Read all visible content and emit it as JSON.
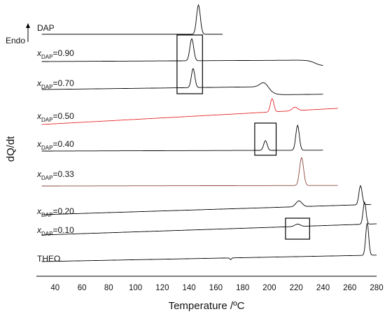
{
  "chart_data": {
    "type": "line",
    "xlabel": "Temperature /ºC",
    "ylabel": "dQ/dt",
    "endo_label": "Endo",
    "xlim": [
      26,
      280
    ],
    "xticks": [
      40,
      60,
      80,
      100,
      120,
      140,
      160,
      180,
      200,
      220,
      240,
      260,
      280
    ],
    "grid": false,
    "legend": "none",
    "series": [
      {
        "name": "DAP",
        "label_main": "DAP",
        "label_sub": "",
        "color": "#000000",
        "x_range": [
          30,
          165
        ],
        "baseline": 0.0,
        "slope": 0.0,
        "peaks": [
          {
            "x": 147,
            "height": 1.0,
            "width": 1.4
          }
        ],
        "steps": []
      },
      {
        "name": "x_DAP=0.90",
        "label_main": "x",
        "label_sub": "DAP",
        "label_value": "=0.90",
        "color": "#000000",
        "x_range": [
          30,
          240
        ],
        "baseline": 0.0,
        "slope": 0.05,
        "peaks": [
          {
            "x": 142,
            "height": 0.75,
            "width": 1.4
          }
        ],
        "steps": [
          {
            "x": 234,
            "height": -0.2
          }
        ]
      },
      {
        "name": "x_DAP=0.70",
        "label_main": "x",
        "label_sub": "DAP",
        "label_value": "=0.70",
        "color": "#000000",
        "x_range": [
          30,
          240
        ],
        "baseline": 0.0,
        "slope": 0.12,
        "peaks": [
          {
            "x": 143,
            "height": 0.65,
            "width": 1.3
          },
          {
            "x": 196,
            "height": 0.18,
            "width": 3.0
          }
        ],
        "steps": [
          {
            "x": 200,
            "height": -0.28
          }
        ]
      },
      {
        "name": "x_DAP=0.50",
        "label_main": "x",
        "label_sub": "DAP",
        "label_value": "=0.50",
        "color": "#e8292a",
        "x_range": [
          30,
          251
        ],
        "baseline": 0.0,
        "slope": 0.55,
        "peaks": [
          {
            "x": 202,
            "height": 0.45,
            "width": 1.3
          },
          {
            "x": 219,
            "height": 0.12,
            "width": 2.0
          }
        ],
        "steps": []
      },
      {
        "name": "x_DAP=0.40",
        "label_main": "x",
        "label_sub": "DAP",
        "label_value": "=0.40",
        "color": "#000000",
        "x_range": [
          30,
          240
        ],
        "baseline": 0.0,
        "slope": 0.03,
        "peaks": [
          {
            "x": 197,
            "height": 0.33,
            "width": 1.3
          },
          {
            "x": 221,
            "height": 0.85,
            "width": 1.3
          }
        ],
        "steps": []
      },
      {
        "name": "x_DAP=0.33",
        "label_main": "x",
        "label_sub": "DAP",
        "label_value": "=0.33",
        "color": "#8b4a3c",
        "x_range": [
          30,
          251
        ],
        "baseline": 0.0,
        "slope": 0.02,
        "peaks": [
          {
            "x": 224,
            "height": 0.95,
            "width": 1.5
          }
        ],
        "steps": []
      },
      {
        "name": "x_DAP=0.20",
        "label_main": "x",
        "label_sub": "DAP",
        "label_value": "=0.20",
        "color": "#000000",
        "x_range": [
          30,
          276
        ],
        "baseline": 0.0,
        "slope": 0.35,
        "peaks": [
          {
            "x": 222,
            "height": 0.2,
            "width": 2.2
          },
          {
            "x": 268,
            "height": 0.65,
            "width": 1.2
          }
        ],
        "steps": []
      },
      {
        "name": "x_DAP=0.10",
        "label_main": "x",
        "label_sub": "DAP",
        "label_value": "=0.10",
        "color": "#000000",
        "x_range": [
          30,
          280
        ],
        "baseline": 0.0,
        "slope": 0.38,
        "peaks": [
          {
            "x": 221,
            "height": 0.08,
            "width": 2.0
          },
          {
            "x": 271,
            "height": 0.75,
            "width": 1.1
          }
        ],
        "steps": []
      },
      {
        "name": "THEO",
        "label_main": "THEO",
        "label_sub": "",
        "color": "#000000",
        "x_range": [
          30,
          280
        ],
        "baseline": 0.0,
        "slope": 0.22,
        "peaks": [
          {
            "x": 171,
            "height": -0.06,
            "width": 0.6
          },
          {
            "x": 273,
            "height": 1.1,
            "width": 1.1
          }
        ],
        "steps": []
      }
    ],
    "annotations": [
      {
        "type": "box",
        "x_from": 131,
        "x_to": 150,
        "series_from": "DAP",
        "series_to": "x_DAP=0.70"
      },
      {
        "type": "box",
        "x_from": 189,
        "x_to": 205,
        "series_from": "x_DAP=0.50",
        "series_to": "x_DAP=0.40"
      },
      {
        "type": "box",
        "x_from": 212,
        "x_to": 230,
        "series_from": "x_DAP=0.20",
        "series_to": "x_DAP=0.10"
      }
    ]
  }
}
